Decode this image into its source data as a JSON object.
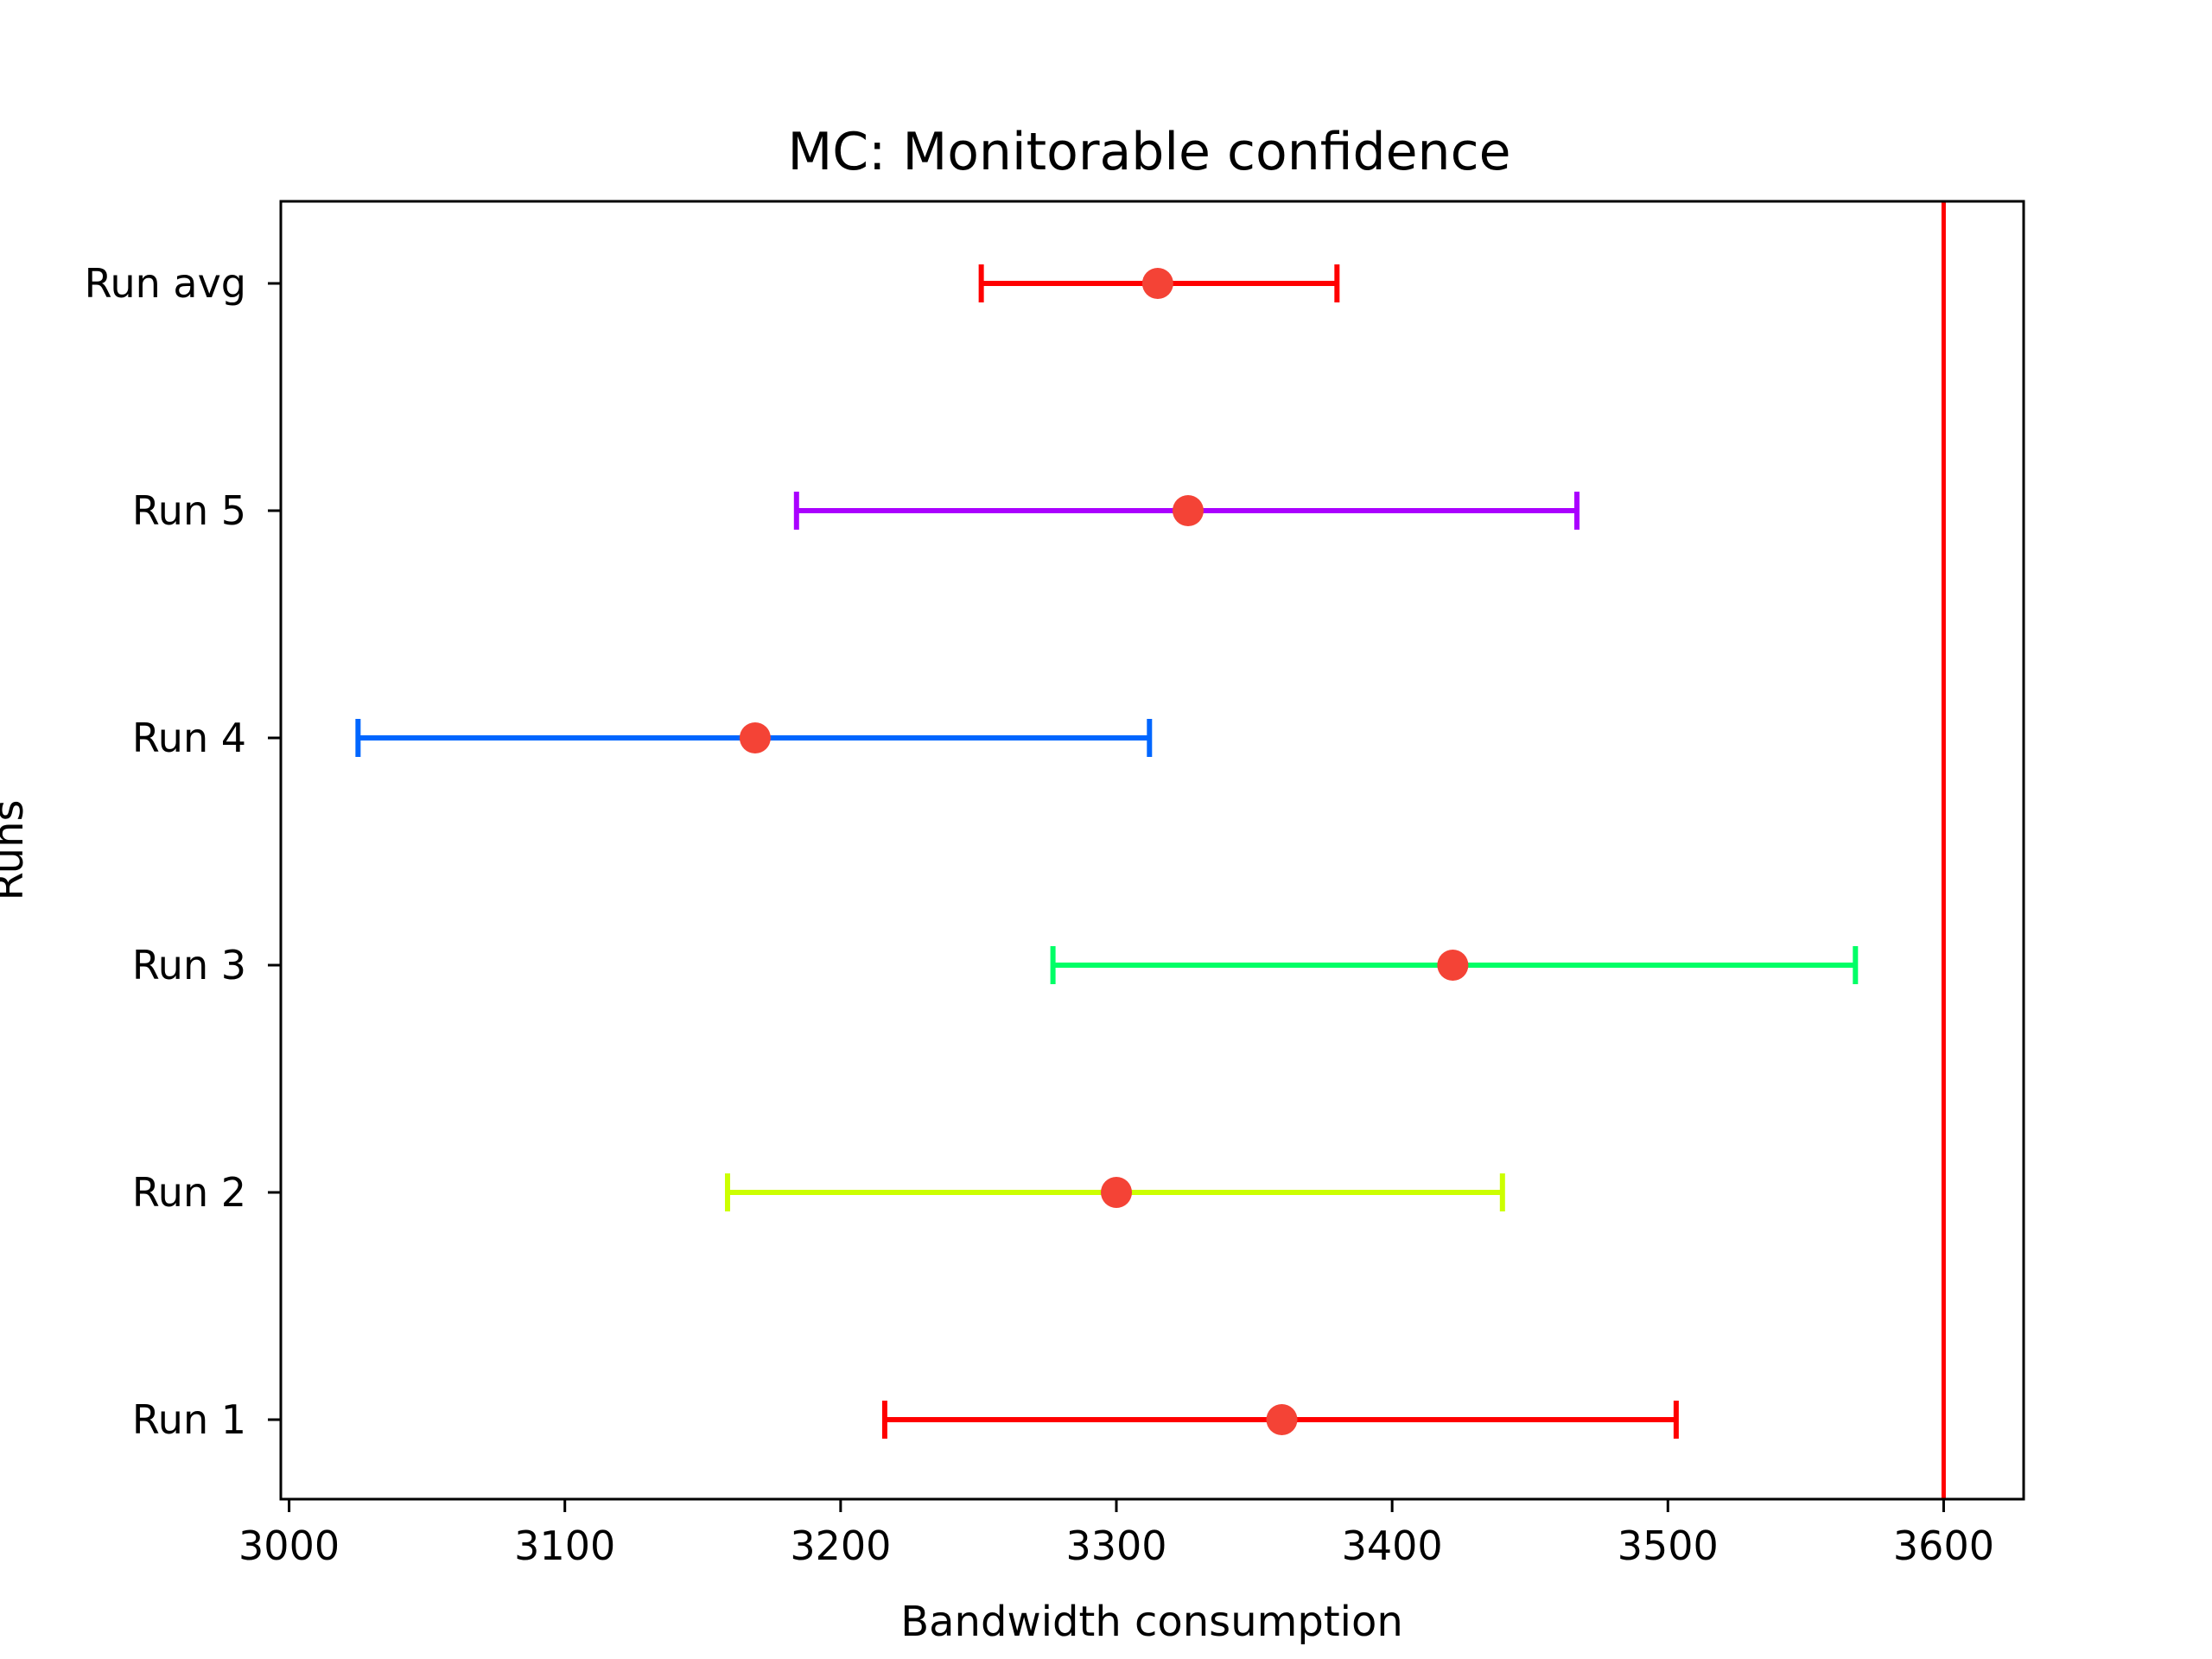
{
  "chart_data": {
    "type": "errorbar",
    "title": "MC: Monitorable confidence",
    "xlabel": "Bandwidth consumption",
    "ylabel": "Runs",
    "xlim": [
      2997,
      3629
    ],
    "x_ticks": [
      3000,
      3100,
      3200,
      3300,
      3400,
      3500,
      3600
    ],
    "grid": false,
    "marker_color": "#f44336",
    "reference_line": {
      "x": 3600,
      "color": "#ff0000"
    },
    "series": [
      {
        "name": "Run 1",
        "mean": 3360,
        "low": 3216,
        "high": 3503,
        "color": "#ff0000"
      },
      {
        "name": "Run 2",
        "mean": 3300,
        "low": 3159,
        "high": 3440,
        "color": "#ccff00"
      },
      {
        "name": "Run 3",
        "mean": 3422,
        "low": 3277,
        "high": 3568,
        "color": "#00ff66"
      },
      {
        "name": "Run 4",
        "mean": 3169,
        "low": 3025,
        "high": 3312,
        "color": "#0066ff"
      },
      {
        "name": "Run 5",
        "mean": 3326,
        "low": 3184,
        "high": 3467,
        "color": "#aa00ff"
      },
      {
        "name": "Run avg",
        "mean": 3315,
        "low": 3251,
        "high": 3380,
        "color": "#ff0000"
      }
    ]
  }
}
